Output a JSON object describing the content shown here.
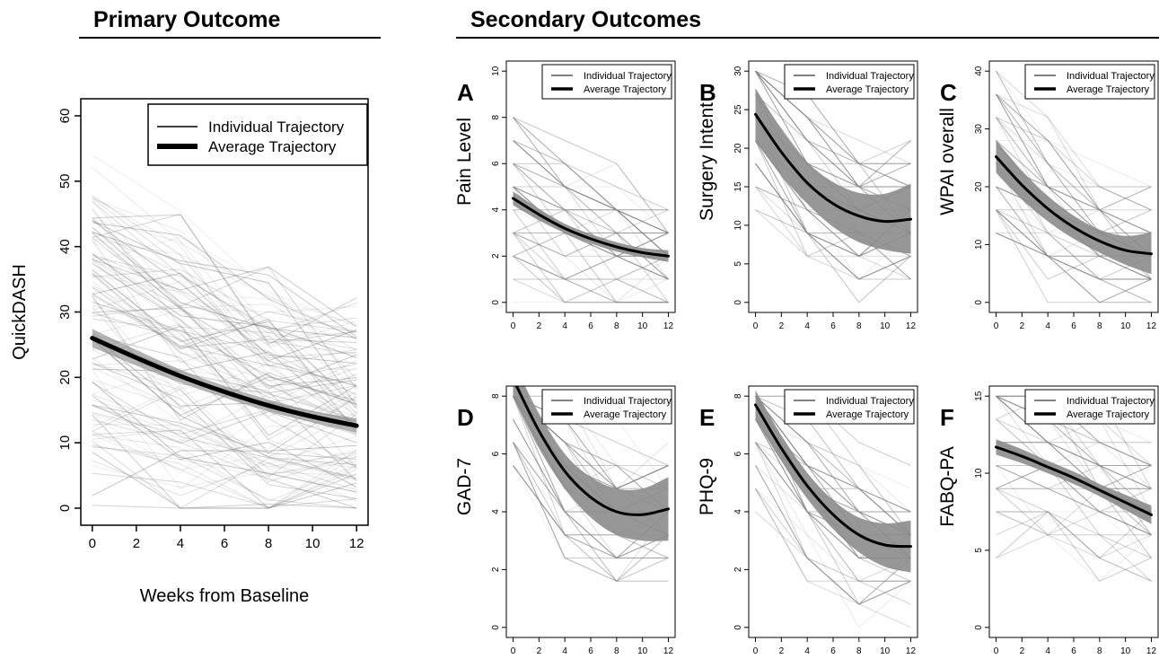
{
  "headers": {
    "primary": "Primary Outcome",
    "secondary": "Secondary Outcomes"
  },
  "legend": {
    "individual": "Individual Trajectory",
    "average": "Average Trajectory"
  },
  "chart_data": [
    {
      "id": "primary",
      "letter": "",
      "type": "line",
      "title": "",
      "xlabel": "Weeks from Baseline",
      "ylabel": "QuickDASH",
      "xlim": [
        0,
        12
      ],
      "ylim": [
        0,
        60
      ],
      "xticks": [
        0,
        2,
        4,
        6,
        8,
        10,
        12
      ],
      "yticks": [
        0,
        10,
        20,
        30,
        40,
        50,
        60
      ],
      "series": [
        {
          "name": "Average Trajectory",
          "x": [
            0,
            2,
            4,
            6,
            8,
            10,
            12
          ],
          "y": [
            26,
            23,
            20.2,
            17.8,
            15.7,
            14,
            12.6
          ],
          "lower": [
            24.6,
            21.8,
            19.2,
            16.9,
            14.8,
            13.1,
            11.5
          ],
          "upper": [
            27.4,
            24.2,
            21.2,
            18.7,
            16.6,
            14.9,
            13.7
          ]
        }
      ]
    },
    {
      "id": "A",
      "letter": "A",
      "type": "line",
      "title": "",
      "xlabel": "",
      "ylabel": "Pain Level",
      "xlim": [
        0,
        12
      ],
      "ylim": [
        0,
        10
      ],
      "xticks": [
        0,
        2,
        4,
        6,
        8,
        10,
        12
      ],
      "yticks": [
        0,
        2,
        4,
        6,
        8,
        10
      ],
      "series": [
        {
          "name": "Average Trajectory",
          "x": [
            0,
            2,
            4,
            6,
            8,
            10,
            12
          ],
          "y": [
            4.5,
            3.8,
            3.2,
            2.75,
            2.4,
            2.15,
            2.0
          ],
          "lower": [
            4.2,
            3.55,
            3.0,
            2.55,
            2.2,
            1.95,
            1.75
          ],
          "upper": [
            4.8,
            4.05,
            3.4,
            2.95,
            2.6,
            2.35,
            2.25
          ]
        }
      ]
    },
    {
      "id": "B",
      "letter": "B",
      "type": "line",
      "title": "",
      "xlabel": "",
      "ylabel": "Surgery Intent",
      "xlim": [
        0,
        12
      ],
      "ylim": [
        0,
        30
      ],
      "xticks": [
        0,
        2,
        4,
        6,
        8,
        10,
        12
      ],
      "yticks": [
        0,
        5,
        10,
        15,
        20,
        25,
        30
      ],
      "series": [
        {
          "name": "Average Trajectory",
          "x": [
            0,
            2,
            4,
            6,
            8,
            10,
            12
          ],
          "y": [
            24.4,
            19.5,
            15.5,
            12.8,
            11.2,
            10.5,
            10.8
          ],
          "lower": [
            21,
            16.5,
            12.8,
            9.8,
            7.8,
            6.8,
            6.3
          ],
          "upper": [
            27.8,
            22.5,
            18.2,
            15.6,
            14.2,
            14.1,
            15.4
          ]
        }
      ]
    },
    {
      "id": "C",
      "letter": "C",
      "type": "line",
      "title": "",
      "xlabel": "",
      "ylabel": "WPAI overall",
      "xlim": [
        0,
        12
      ],
      "ylim": [
        0,
        40
      ],
      "xticks": [
        0,
        2,
        4,
        6,
        8,
        10,
        12
      ],
      "yticks": [
        0,
        10,
        20,
        30,
        40
      ],
      "series": [
        {
          "name": "Average Trajectory",
          "x": [
            0,
            2,
            4,
            6,
            8,
            10,
            12
          ],
          "y": [
            25.2,
            20.3,
            16.2,
            13,
            10.6,
            9.0,
            8.4
          ],
          "lower": [
            22.4,
            17.8,
            14,
            11,
            8.6,
            6.5,
            4.9
          ],
          "upper": [
            28,
            22.8,
            18.4,
            15,
            12.6,
            11.5,
            12.1
          ]
        }
      ]
    },
    {
      "id": "D",
      "letter": "D",
      "type": "line",
      "title": "",
      "xlabel": "",
      "ylabel": "GAD-7",
      "xlim": [
        0,
        12
      ],
      "ylim": [
        0,
        8
      ],
      "xticks": [
        0,
        2,
        4,
        6,
        8,
        10,
        12
      ],
      "yticks": [
        0,
        2,
        4,
        6,
        8
      ],
      "series": [
        {
          "name": "Average Trajectory",
          "x": [
            0,
            2,
            4,
            6,
            8,
            10,
            12
          ],
          "y": [
            8.6,
            6.8,
            5.4,
            4.5,
            4.0,
            3.9,
            4.1
          ],
          "lower": [
            8.0,
            6.2,
            4.8,
            3.8,
            3.2,
            3.0,
            3.0
          ],
          "upper": [
            9.2,
            7.4,
            6.0,
            5.2,
            4.8,
            4.8,
            5.2
          ]
        }
      ]
    },
    {
      "id": "E",
      "letter": "E",
      "type": "line",
      "title": "",
      "xlabel": "",
      "ylabel": "PHQ-9",
      "xlim": [
        0,
        12
      ],
      "ylim": [
        0,
        8
      ],
      "xticks": [
        0,
        2,
        4,
        6,
        8,
        10,
        12
      ],
      "yticks": [
        0,
        2,
        4,
        6,
        8
      ],
      "series": [
        {
          "name": "Average Trajectory",
          "x": [
            0,
            2,
            4,
            6,
            8,
            10,
            12
          ],
          "y": [
            7.7,
            6.2,
            4.9,
            3.9,
            3.2,
            2.85,
            2.8
          ],
          "lower": [
            7.2,
            5.75,
            4.45,
            3.4,
            2.6,
            2.1,
            1.9
          ],
          "upper": [
            8.2,
            6.65,
            5.35,
            4.4,
            3.8,
            3.6,
            3.7
          ]
        }
      ]
    },
    {
      "id": "F",
      "letter": "F",
      "type": "line",
      "title": "",
      "xlabel": "",
      "ylabel": "FABQ-PA",
      "xlim": [
        0,
        12
      ],
      "ylim": [
        0,
        15
      ],
      "xticks": [
        0,
        2,
        4,
        6,
        8,
        10,
        12
      ],
      "yticks": [
        0,
        5,
        10,
        15
      ],
      "series": [
        {
          "name": "Average Trajectory",
          "x": [
            0,
            2,
            4,
            6,
            8,
            10,
            12
          ],
          "y": [
            11.7,
            11.1,
            10.4,
            9.7,
            8.9,
            8.1,
            7.3
          ],
          "lower": [
            11.2,
            10.65,
            10.0,
            9.3,
            8.5,
            7.6,
            6.7
          ],
          "upper": [
            12.2,
            11.55,
            10.8,
            10.1,
            9.3,
            8.6,
            7.9
          ]
        }
      ]
    }
  ]
}
